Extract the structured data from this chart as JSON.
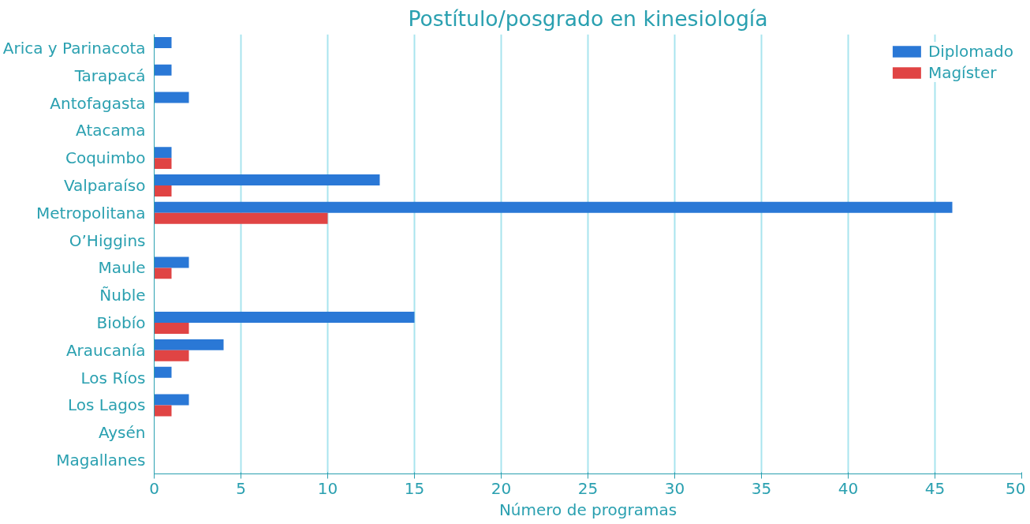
{
  "chart_data": {
    "type": "bar",
    "orientation": "horizontal",
    "title": "Postítulo/posgrado en kinesiología",
    "xlabel": "Número de programas",
    "categories": [
      "Arica y Parinacota",
      "Tarapacá",
      "Antofagasta",
      "Atacama",
      "Coquimbo",
      "Valparaíso",
      "Metropolitana",
      "O’Higgins",
      "Maule",
      "Ñuble",
      "Biobío",
      "Araucanía",
      "Los Ríos",
      "Los Lagos",
      "Aysén",
      "Magallanes"
    ],
    "series": [
      {
        "name": "Diplomado",
        "color": "#2a78d6",
        "values": [
          1,
          1,
          2,
          0,
          1,
          13,
          46,
          0,
          2,
          0,
          15,
          4,
          1,
          2,
          0,
          0
        ]
      },
      {
        "name": "Magíster",
        "color": "#e04444",
        "values": [
          0,
          0,
          0,
          0,
          1,
          1,
          10,
          0,
          1,
          0,
          2,
          2,
          0,
          1,
          0,
          0
        ]
      }
    ],
    "xlim": [
      0,
      50
    ],
    "xticks": [
      0,
      5,
      10,
      15,
      20,
      25,
      30,
      35,
      40,
      45,
      50
    ],
    "grid": "x",
    "legend": "top right"
  }
}
